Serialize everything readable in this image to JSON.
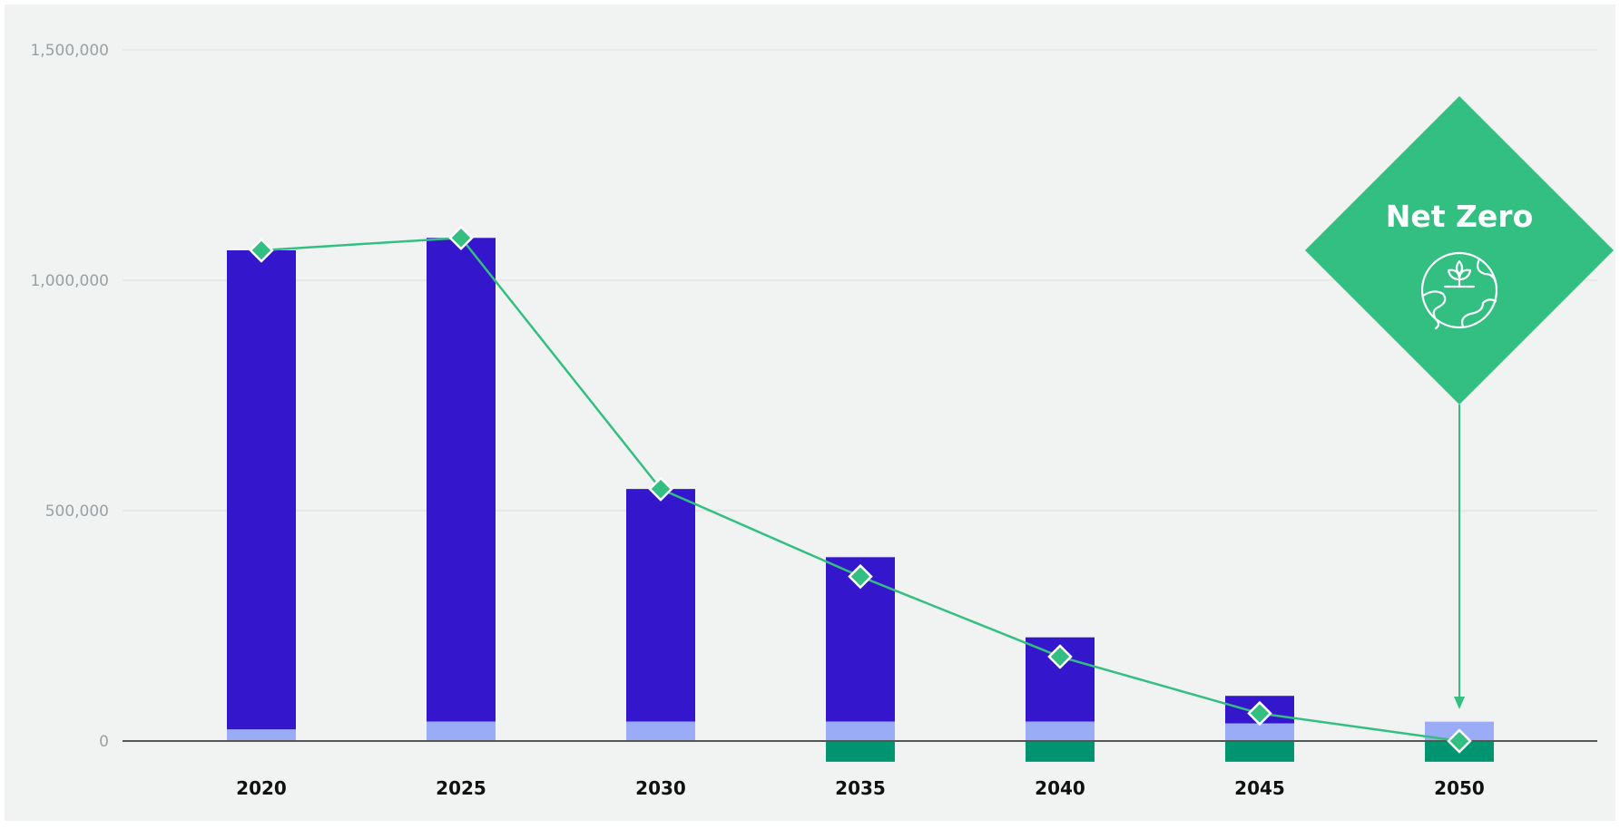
{
  "chart_data": {
    "type": "bar",
    "stacked": true,
    "categories": [
      "2020",
      "2025",
      "2030",
      "2035",
      "2040",
      "2045",
      "2050"
    ],
    "highlight_category": "2050",
    "ylim": [
      -45000,
      1500000
    ],
    "y_ticks": [
      {
        "value": 0,
        "label": "0"
      },
      {
        "value": 500000,
        "label": "500,000"
      },
      {
        "value": 1000000,
        "label": "1,000,000"
      },
      {
        "value": 1500000,
        "label": "1,500,000"
      }
    ],
    "grid": true,
    "series": [
      {
        "key": "light",
        "values": [
          25000,
          42000,
          42000,
          42000,
          42000,
          38000,
          42000
        ]
      },
      {
        "key": "dark",
        "values": [
          1040000,
          1050000,
          505000,
          357000,
          183000,
          60000,
          0
        ]
      },
      {
        "key": "negative",
        "values": [
          0,
          0,
          0,
          -45000,
          -45000,
          -45000,
          -45000
        ]
      },
      {
        "key": "net",
        "type": "line",
        "values": [
          1065000,
          1092000,
          547000,
          357000,
          183000,
          60000,
          0
        ]
      }
    ],
    "callout": {
      "text": "Net Zero",
      "category": "2050",
      "icon": "globe-plant-icon"
    }
  },
  "colors": {
    "background": "#f1f3f2",
    "grid": "#dcdfdf",
    "zero_line": "#555555",
    "dark": "#3416cc",
    "light": "#9aacf5",
    "negative": "#019470",
    "line": "#33bf82",
    "callout": "#33bf82",
    "highlight_text": "#33bf82",
    "category_text": "#111111",
    "tick_text": "#9aa0a4"
  }
}
